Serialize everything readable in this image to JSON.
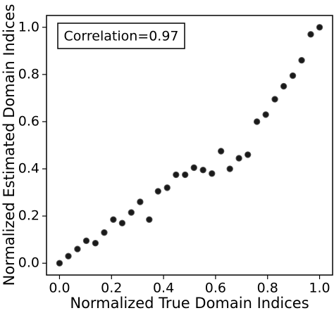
{
  "chart_data": {
    "type": "scatter",
    "xlabel": "Normalized True Domain Indices",
    "ylabel": "Normalized Estimated Domain Indices",
    "annotation": "Correlation=0.97",
    "color": "#1a1a1a",
    "x": [
      0,
      0.034,
      0.069,
      0.103,
      0.138,
      0.172,
      0.207,
      0.241,
      0.276,
      0.31,
      0.345,
      0.379,
      0.414,
      0.448,
      0.483,
      0.517,
      0.552,
      0.586,
      0.621,
      0.655,
      0.69,
      0.724,
      0.759,
      0.793,
      0.828,
      0.862,
      0.897,
      0.931,
      0.966,
      1.0
    ],
    "values": [
      0.0,
      0.03,
      0.06,
      0.095,
      0.085,
      0.13,
      0.185,
      0.17,
      0.215,
      0.26,
      0.185,
      0.305,
      0.32,
      0.375,
      0.375,
      0.405,
      0.395,
      0.38,
      0.475,
      0.4,
      0.445,
      0.46,
      0.6,
      0.63,
      0.695,
      0.75,
      0.795,
      0.86,
      0.97,
      1.0
    ],
    "xlim": [
      -0.05,
      1.05
    ],
    "ylim": [
      -0.05,
      1.05
    ],
    "xticks": [
      {
        "value": 0,
        "label": "0.0"
      },
      0.2,
      0.4,
      0.6,
      0.8,
      {
        "value": 1,
        "label": "1.0"
      }
    ],
    "yticks": [
      {
        "value": 0,
        "label": "0.0"
      },
      0.2,
      0.4,
      0.6,
      0.8,
      {
        "value": 1,
        "label": "1.0"
      }
    ]
  }
}
